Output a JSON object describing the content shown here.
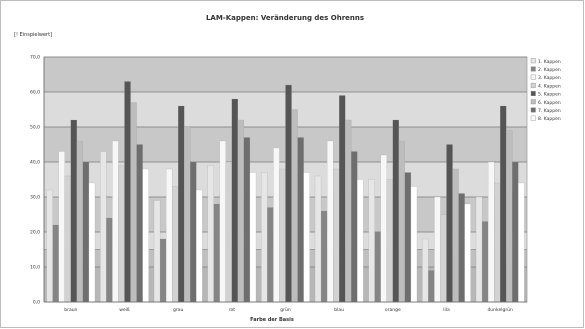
{
  "chart_data": {
    "type": "bar",
    "title": "LAM-Kappen: Veränderung des Ohrenns",
    "ylabel": "[! Einspielwert]",
    "xlabel": "Farbe der Basis",
    "ylim": [
      0,
      70
    ],
    "yticks": [
      "0,0",
      "10,0",
      "20,0",
      "30,0",
      "40,0",
      "50,0",
      "60,0",
      "70,0"
    ],
    "ytick_values": [
      0,
      10,
      20,
      30,
      40,
      50,
      60,
      70
    ],
    "grid": true,
    "legend_position": "right",
    "categories": [
      "braun",
      "weiß",
      "grau",
      "rot",
      "grün",
      "blau",
      "orange",
      "lila",
      "dunkelgrün"
    ],
    "series": [
      {
        "name": "1. Kappen",
        "color": "#e6e6e6",
        "values": [
          32,
          43,
          29,
          39,
          37,
          36,
          35,
          18,
          30
        ]
      },
      {
        "name": "2. Kappen",
        "color": "#858585",
        "values": [
          22,
          24,
          18,
          28,
          27,
          26,
          20,
          9,
          23
        ]
      },
      {
        "name": "3. Kappen",
        "color": "#f7f7f7",
        "values": [
          43,
          46,
          38,
          46,
          44,
          46,
          42,
          30,
          40
        ]
      },
      {
        "name": "4. Kappen",
        "color": "#d2d2d2",
        "values": [
          36,
          39,
          33,
          40,
          38,
          38,
          35,
          25,
          34
        ]
      },
      {
        "name": "5. Kappen",
        "color": "#555555",
        "values": [
          52,
          63,
          56,
          58,
          62,
          59,
          52,
          45,
          56
        ]
      },
      {
        "name": "6. Kappen",
        "color": "#bdbdbd",
        "values": [
          46,
          57,
          50,
          52,
          55,
          52,
          46,
          38,
          49
        ]
      },
      {
        "name": "7. Kappen",
        "color": "#6e6e6e",
        "values": [
          40,
          45,
          40,
          47,
          47,
          43,
          37,
          31,
          40
        ]
      },
      {
        "name": "8. Kappen",
        "color": "#ffffff",
        "values": [
          34,
          38,
          32,
          37,
          37,
          35,
          33,
          28,
          34
        ]
      }
    ]
  },
  "colors": {
    "band_light": "#dcdcdc",
    "band_dark": "#c8c8c8",
    "band_bottom": "#a9a9a9",
    "gridline": "#7a7a7a"
  }
}
